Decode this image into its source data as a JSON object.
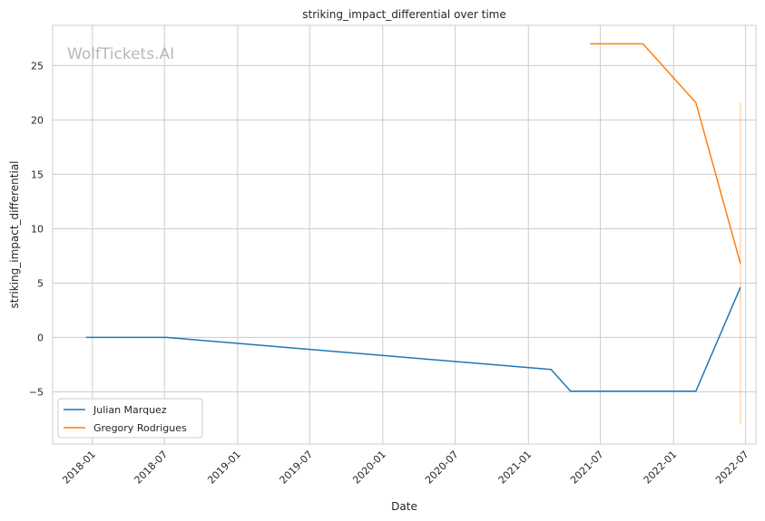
{
  "watermark": "WolfTickets.AI",
  "chart_data": {
    "type": "line",
    "title": "striking_impact_differential over time",
    "xlabel": "Date",
    "ylabel": "striking_impact_differential",
    "x_ticks": [
      "2018-01",
      "2018-07",
      "2019-01",
      "2019-07",
      "2020-01",
      "2020-07",
      "2021-01",
      "2021-07",
      "2022-01",
      "2022-07"
    ],
    "y_ticks": [
      -5,
      0,
      5,
      10,
      15,
      20,
      25
    ],
    "xlim": [
      "2017-09-23",
      "2022-07-27"
    ],
    "ylim": [
      -9.8,
      28.7
    ],
    "grid": true,
    "legend_position": "lower-left",
    "series": [
      {
        "name": "Julian Marquez",
        "color": "#1f77b4",
        "x": [
          "2017-12-16",
          "2018-07-06",
          "2021-02-27",
          "2021-04-17",
          "2022-02-26",
          "2022-06-18"
        ],
        "values": [
          0,
          0,
          -2.95,
          -4.95,
          -4.95,
          4.6
        ]
      },
      {
        "name": "Gregory Rodrigues",
        "color": "#ff7f0e",
        "x": [
          "2021-06-05",
          "2021-10-16",
          "2022-02-26",
          "2022-06-18"
        ],
        "values": [
          27,
          27,
          21.6,
          6.8
        ]
      }
    ],
    "annotations": [
      {
        "type": "vertical-band",
        "x": "2022-06-18",
        "y_range": [
          -8,
          21.6
        ],
        "color": "#ff7f0e"
      }
    ]
  }
}
